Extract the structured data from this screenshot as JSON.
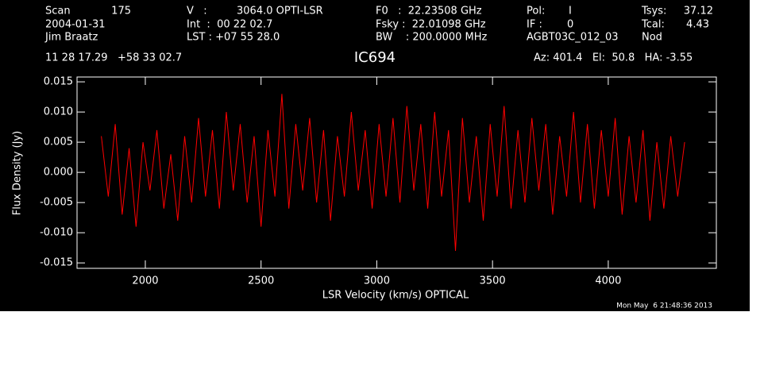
{
  "chart_data": {
    "type": "line",
    "title": "IC694",
    "xlabel": "LSR Velocity (km/s) OPTICAL",
    "ylabel": "Flux Density (Jy)",
    "footer": "Mon May  6 21:48:36 2013",
    "annotations": [
      "Scan",
      "175",
      "2004-01-31",
      "Jim Braatz",
      "V   :",
      "3064.0 OPTI-LSR",
      "Int  :  00 22 02.7",
      "LST : +07 55 28.0",
      "F0   :  22.23508 GHz",
      "Fsky :  22.01098 GHz",
      "BW    : 200.0000 MHz",
      "Pol:",
      "I",
      "IF :",
      "0",
      "AGBT03C_012_03",
      "Tsys:",
      "37.12",
      "Tcal:",
      "4.43",
      "Nod",
      "11 28 17.29   +58 33 02.7",
      "Az: 401.4   El:  50.8   HA: -3.55"
    ],
    "xlim": [
      1705,
      4467
    ],
    "ylim": [
      -0.0159,
      0.0158
    ],
    "xticks": [
      2000,
      2500,
      3000,
      3500,
      4000
    ],
    "yticks": [
      {
        "value": 0.015,
        "label": "0.015"
      },
      {
        "value": 0.01,
        "label": "0.010"
      },
      {
        "value": 0.005,
        "label": "0.005"
      },
      {
        "value": 0,
        "label": "0.000"
      },
      {
        "value": -0.005,
        "label": "-0.005"
      },
      {
        "value": -0.01,
        "label": "-0.010"
      },
      {
        "value": -0.015,
        "label": "-0.015"
      }
    ],
    "x": [
      1810,
      1840,
      1870,
      1900,
      1930,
      1960,
      1990,
      2020,
      2050,
      2080,
      2110,
      2140,
      2170,
      2200,
      2230,
      2260,
      2290,
      2320,
      2350,
      2380,
      2410,
      2440,
      2470,
      2500,
      2530,
      2560,
      2590,
      2620,
      2650,
      2680,
      2710,
      2740,
      2770,
      2800,
      2830,
      2860,
      2890,
      2920,
      2950,
      2980,
      3010,
      3040,
      3070,
      3100,
      3130,
      3160,
      3190,
      3220,
      3250,
      3280,
      3310,
      3340,
      3370,
      3400,
      3430,
      3460,
      3490,
      3520,
      3550,
      3580,
      3610,
      3640,
      3670,
      3700,
      3730,
      3760,
      3790,
      3820,
      3850,
      3880,
      3910,
      3940,
      3970,
      4000,
      4030,
      4060,
      4090,
      4120,
      4150,
      4180,
      4210,
      4240,
      4270,
      4300,
      4330
    ],
    "series": [
      {
        "color": "#ff0000",
        "values": [
          0.006,
          -0.004,
          0.008,
          -0.007,
          0.004,
          -0.009,
          0.005,
          -0.003,
          0.007,
          -0.006,
          0.003,
          -0.008,
          0.006,
          -0.005,
          0.009,
          -0.004,
          0.007,
          -0.006,
          0.01,
          -0.003,
          0.008,
          -0.005,
          0.006,
          -0.009,
          0.007,
          -0.004,
          0.013,
          -0.006,
          0.008,
          -0.003,
          0.009,
          -0.005,
          0.007,
          -0.008,
          0.006,
          -0.004,
          0.01,
          -0.003,
          0.007,
          -0.006,
          0.008,
          -0.004,
          0.009,
          -0.005,
          0.011,
          -0.003,
          0.008,
          -0.006,
          0.01,
          -0.004,
          0.007,
          -0.013,
          0.009,
          -0.005,
          0.006,
          -0.008,
          0.008,
          -0.004,
          0.011,
          -0.006,
          0.007,
          -0.005,
          0.009,
          -0.003,
          0.008,
          -0.007,
          0.006,
          -0.004,
          0.01,
          -0.005,
          0.008,
          -0.006,
          0.007,
          -0.004,
          0.009,
          -0.007,
          0.006,
          -0.005,
          0.007,
          -0.008,
          0.005,
          -0.006,
          0.006,
          -0.004,
          0.005
        ]
      }
    ]
  }
}
